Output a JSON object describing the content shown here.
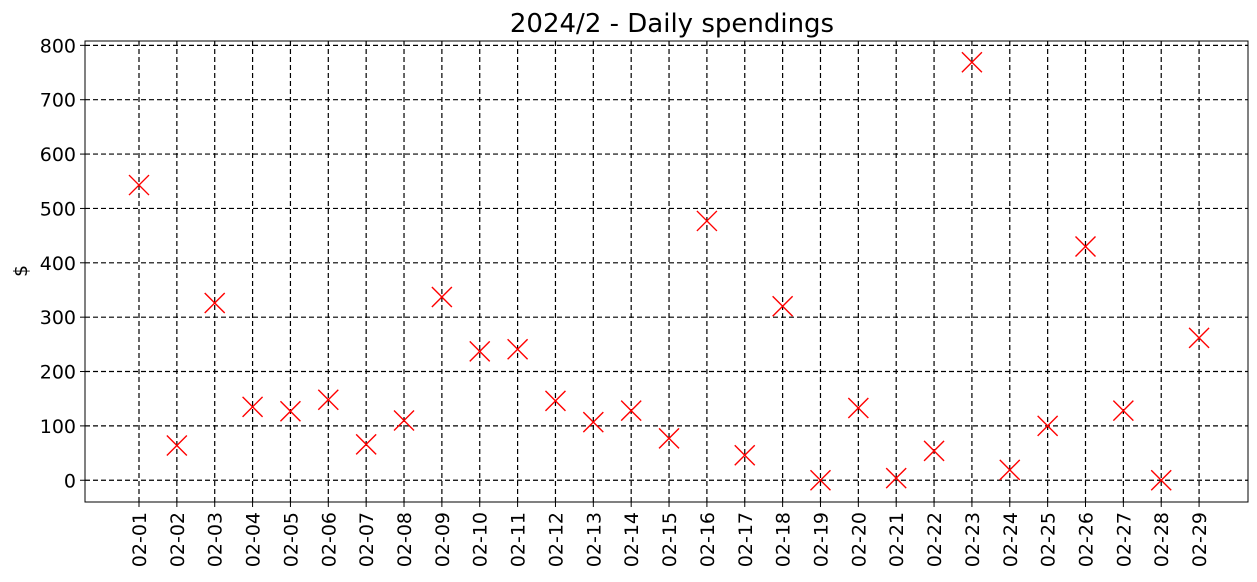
{
  "chart_data": {
    "type": "scatter",
    "title": "2024/2 - Daily spendings",
    "xlabel": "",
    "ylabel": "$",
    "ylim": [
      -40,
      808
    ],
    "yticks": [
      0,
      100,
      200,
      300,
      400,
      500,
      600,
      700,
      800
    ],
    "grid": true,
    "marker": "x",
    "marker_color": "#ff0000",
    "categories": [
      "02-01",
      "02-02",
      "02-03",
      "02-04",
      "02-05",
      "02-06",
      "02-07",
      "02-08",
      "02-09",
      "02-10",
      "02-11",
      "02-12",
      "02-13",
      "02-14",
      "02-15",
      "02-16",
      "02-17",
      "02-18",
      "02-19",
      "02-20",
      "02-21",
      "02-22",
      "02-23",
      "02-24",
      "02-25",
      "02-26",
      "02-27",
      "02-28",
      "02-29"
    ],
    "values": [
      543,
      64,
      326,
      135,
      127,
      148,
      66,
      110,
      337,
      237,
      241,
      146,
      107,
      128,
      77,
      477,
      46,
      320,
      0,
      133,
      4,
      54,
      769,
      19,
      100,
      430,
      128,
      0,
      262
    ]
  }
}
